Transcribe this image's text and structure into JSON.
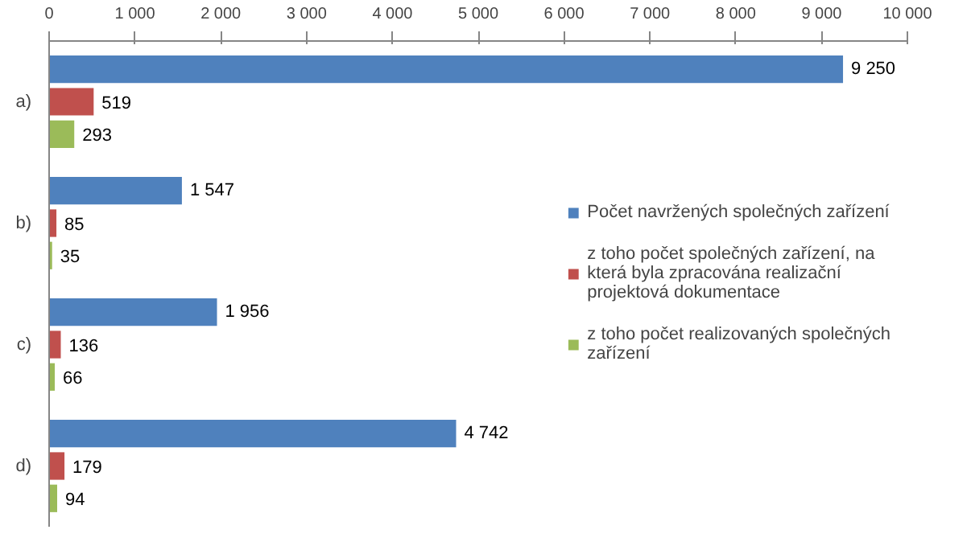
{
  "chart_data": {
    "type": "bar",
    "orientation": "horizontal",
    "categories": [
      "a)",
      "b)",
      "c)",
      "d)"
    ],
    "series": [
      {
        "name": "Počet navržených společných zařízení",
        "color": "#4f81bd",
        "values": [
          9250,
          1547,
          1956,
          4742
        ],
        "value_labels": [
          "9 250",
          "1 547",
          "1 956",
          "4 742"
        ]
      },
      {
        "name": "z toho počet společných zařízení, na která byla zpracována realizační projektová dokumentace",
        "color": "#c0504d",
        "values": [
          519,
          85,
          136,
          179
        ],
        "value_labels": [
          "519",
          "85",
          "136",
          "179"
        ]
      },
      {
        "name": "z toho počet realizovaných společných zařízení",
        "color": "#9bbb59",
        "values": [
          293,
          35,
          66,
          94
        ],
        "value_labels": [
          "293",
          "35",
          "66",
          "94"
        ]
      }
    ],
    "xlim": [
      0,
      10000
    ],
    "xticks": [
      0,
      {
        "value": 1000,
        "label": "1 000"
      },
      {
        "value": 2000,
        "label": "2 000"
      },
      {
        "value": 3000,
        "label": "3 000"
      },
      {
        "value": 4000,
        "label": "4 000"
      },
      {
        "value": 5000,
        "label": "5 000"
      },
      {
        "value": 6000,
        "label": "6 000"
      },
      {
        "value": 7000,
        "label": "7 000"
      },
      {
        "value": 8000,
        "label": "8 000"
      },
      {
        "value": 9000,
        "label": "9 000"
      },
      {
        "value": 10000,
        "label": "10 000"
      }
    ],
    "legend": "right",
    "grid": false
  }
}
